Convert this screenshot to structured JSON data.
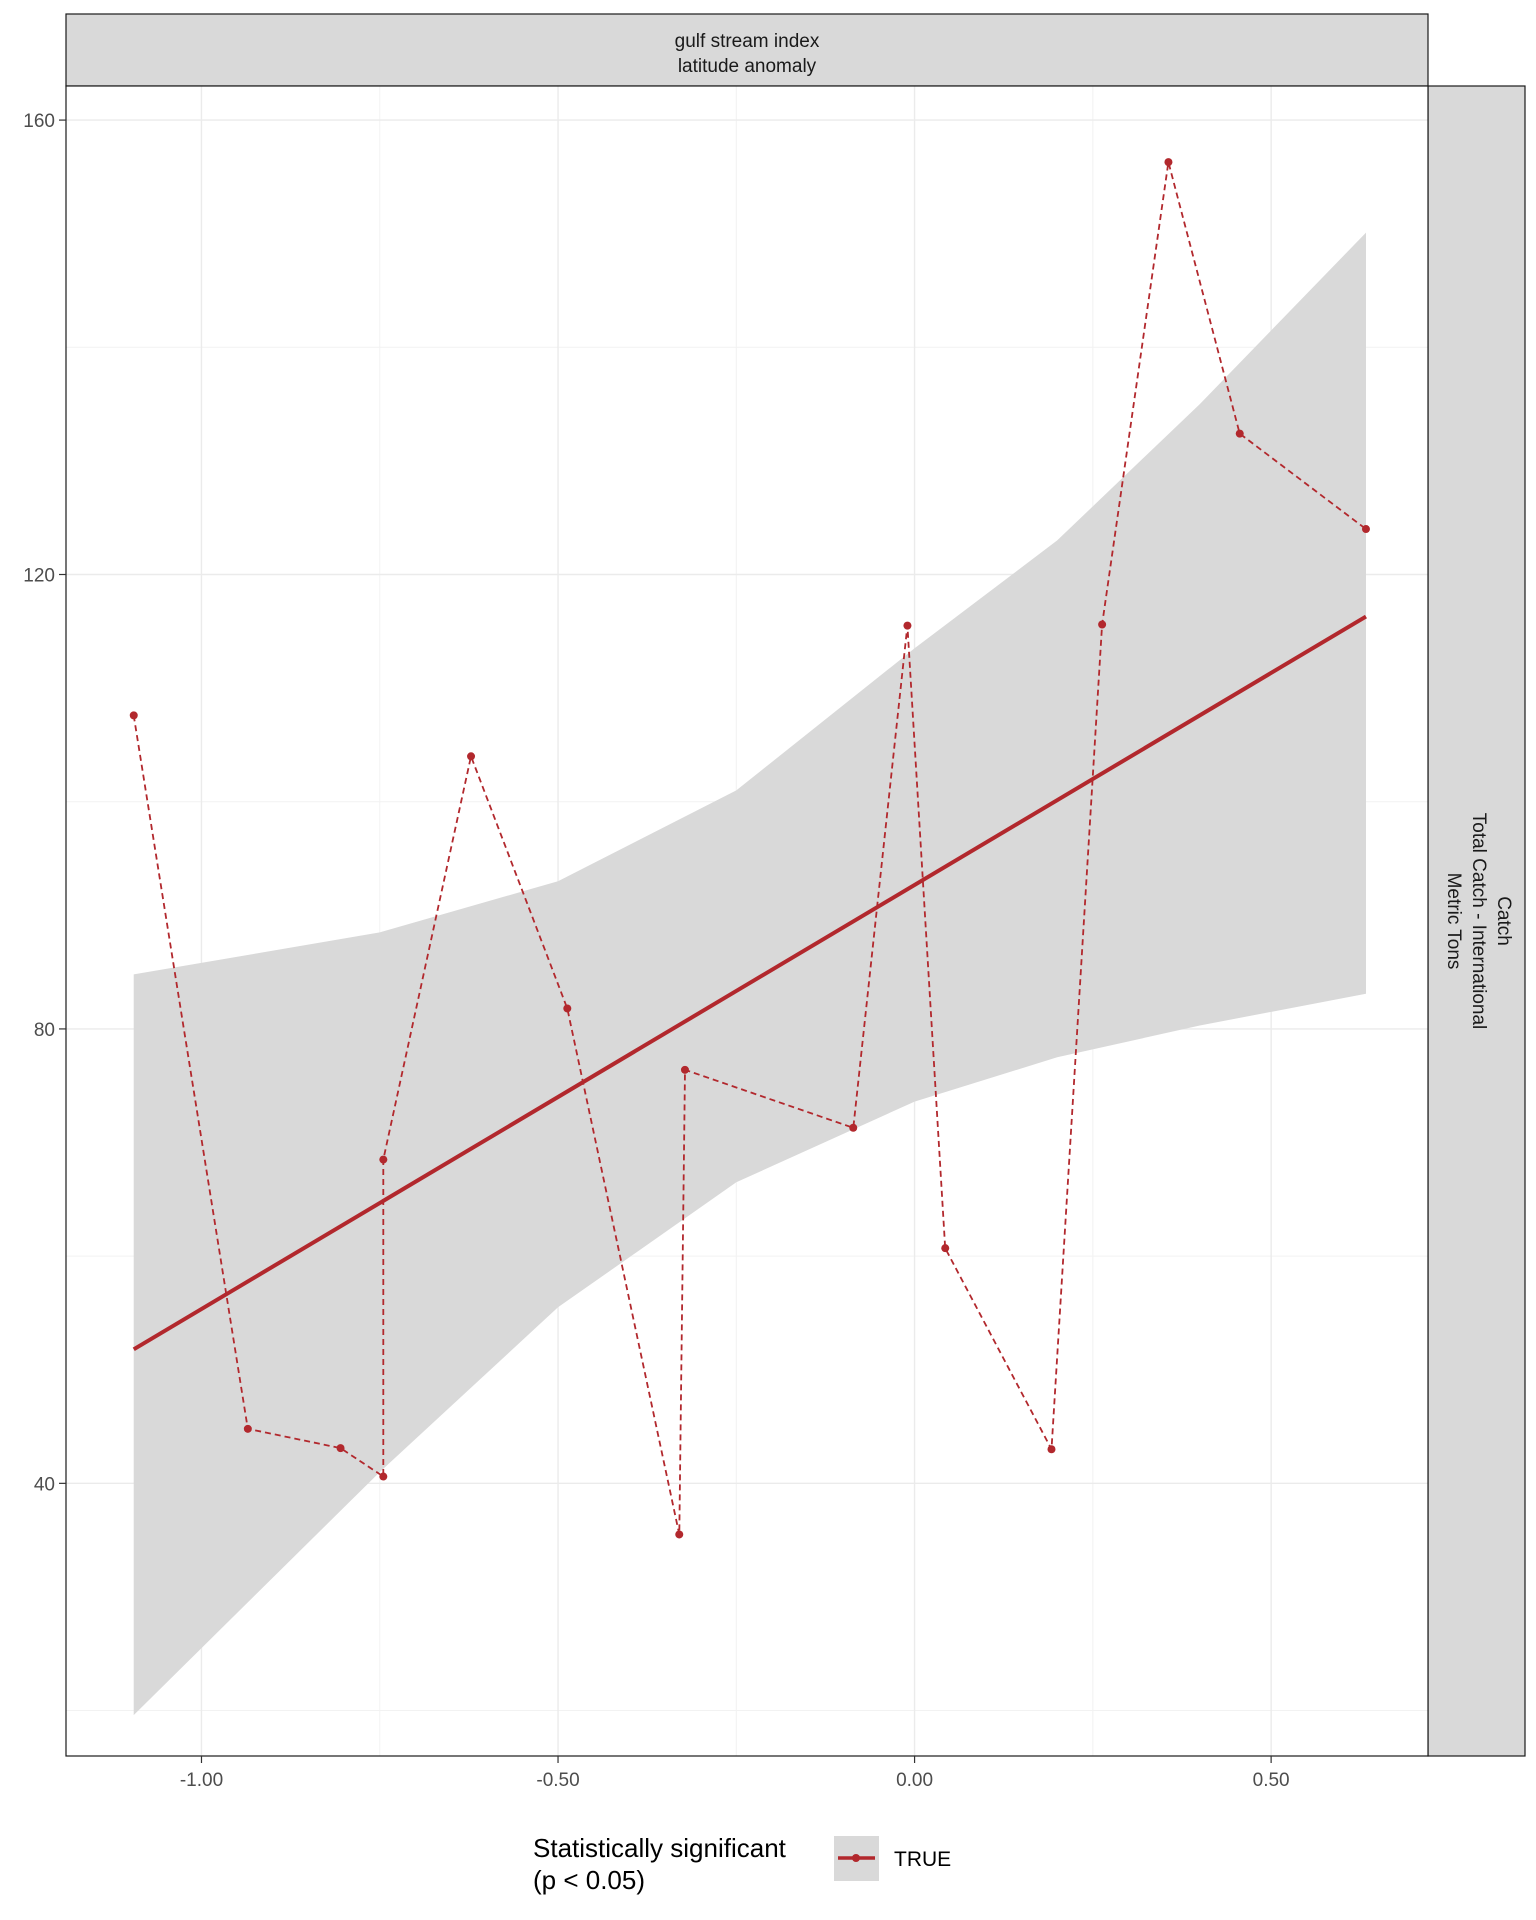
{
  "chart_data": {
    "type": "line",
    "facet": {
      "top_strip": [
        "gulf stream index",
        "latitude anomaly"
      ],
      "right_strip": [
        "Catch",
        "Total Catch - International",
        "Metric Tons"
      ]
    },
    "xlabel": "",
    "ylabel": "",
    "xlim": [
      -1.19,
      0.72
    ],
    "ylim": [
      16,
      163
    ],
    "x_ticks": [
      -1.0,
      -0.5,
      0.0,
      0.5
    ],
    "x_tick_labels": [
      "-1.00",
      "-0.50",
      "0.00",
      "0.50"
    ],
    "y_ticks": [
      40,
      80,
      120,
      160
    ],
    "y_tick_labels": [
      "40",
      "80",
      "120",
      "160"
    ],
    "grid": true,
    "series": [
      {
        "name": "TRUE",
        "line_style": "dashed",
        "color": "#b2282d",
        "points": [
          {
            "x": -1.095,
            "y": 107.6
          },
          {
            "x": -0.935,
            "y": 44.8
          },
          {
            "x": -0.805,
            "y": 43.1
          },
          {
            "x": -0.745,
            "y": 40.6
          },
          {
            "x": -0.745,
            "y": 68.5
          },
          {
            "x": -0.622,
            "y": 104.0
          },
          {
            "x": -0.487,
            "y": 81.8
          },
          {
            "x": -0.33,
            "y": 35.5
          },
          {
            "x": -0.322,
            "y": 76.4
          },
          {
            "x": -0.086,
            "y": 71.3
          },
          {
            "x": -0.01,
            "y": 115.5
          },
          {
            "x": 0.043,
            "y": 60.7
          },
          {
            "x": 0.192,
            "y": 43.0
          },
          {
            "x": 0.263,
            "y": 115.6
          },
          {
            "x": 0.356,
            "y": 156.3
          },
          {
            "x": 0.456,
            "y": 132.4
          },
          {
            "x": 0.633,
            "y": 124.0
          }
        ]
      }
    ],
    "trend": {
      "color": "#b2282d",
      "x": [
        -1.095,
        0.633
      ],
      "y": [
        51.8,
        116.3
      ]
    },
    "confidence_band": {
      "color": "#d9d9d9",
      "x": [
        -1.095,
        -0.75,
        -0.5,
        -0.25,
        0.0,
        0.2,
        0.4,
        0.633
      ],
      "lower": [
        19.6,
        41.0,
        55.5,
        66.5,
        73.6,
        77.5,
        80.3,
        83.1
      ],
      "upper": [
        84.8,
        88.5,
        93.0,
        101.0,
        113.5,
        123.0,
        135.0,
        150.1
      ]
    },
    "legend": {
      "position": "bottom",
      "title": [
        "Statistically significant",
        "(p < 0.05)"
      ],
      "entries": [
        "TRUE"
      ]
    }
  }
}
